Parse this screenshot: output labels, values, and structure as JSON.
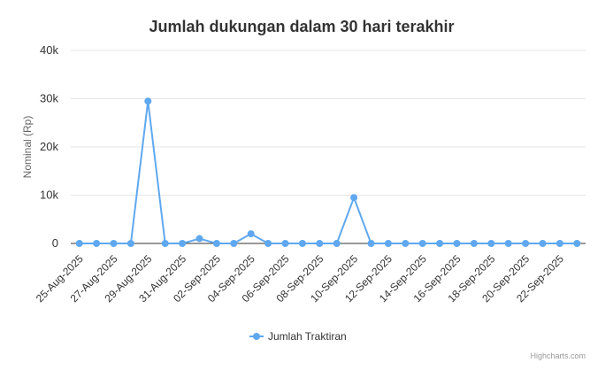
{
  "chart_data": {
    "type": "line",
    "title": "Jumlah dukungan dalam 30 hari terakhir",
    "ylabel": "Nominal (Rp)",
    "xlabel": "",
    "ylim": [
      0,
      40000
    ],
    "yticks": [
      0,
      10000,
      20000,
      30000,
      40000
    ],
    "ytick_labels": [
      "0",
      "10k",
      "20k",
      "30k",
      "40k"
    ],
    "x": [
      "25-Aug-2025",
      "26-Aug-2025",
      "27-Aug-2025",
      "28-Aug-2025",
      "29-Aug-2025",
      "30-Aug-2025",
      "31-Aug-2025",
      "01-Sep-2025",
      "02-Sep-2025",
      "03-Sep-2025",
      "04-Sep-2025",
      "05-Sep-2025",
      "06-Sep-2025",
      "07-Sep-2025",
      "08-Sep-2025",
      "09-Sep-2025",
      "10-Sep-2025",
      "11-Sep-2025",
      "12-Sep-2025",
      "13-Sep-2025",
      "14-Sep-2025",
      "15-Sep-2025",
      "16-Sep-2025",
      "17-Sep-2025",
      "18-Sep-2025",
      "19-Sep-2025",
      "20-Sep-2025",
      "21-Sep-2025",
      "22-Sep-2025",
      "23-Sep-2025"
    ],
    "series": [
      {
        "name": "Jumlah Traktiran",
        "color": "#5fa8ef",
        "values": [
          0,
          0,
          0,
          0,
          29500,
          0,
          0,
          1000,
          0,
          0,
          2000,
          0,
          0,
          0,
          0,
          0,
          9500,
          0,
          0,
          0,
          0,
          0,
          0,
          0,
          0,
          0,
          0,
          0,
          0,
          0
        ]
      }
    ],
    "grid": true,
    "legend": "bottom-center"
  },
  "credits": "Highcharts.com"
}
